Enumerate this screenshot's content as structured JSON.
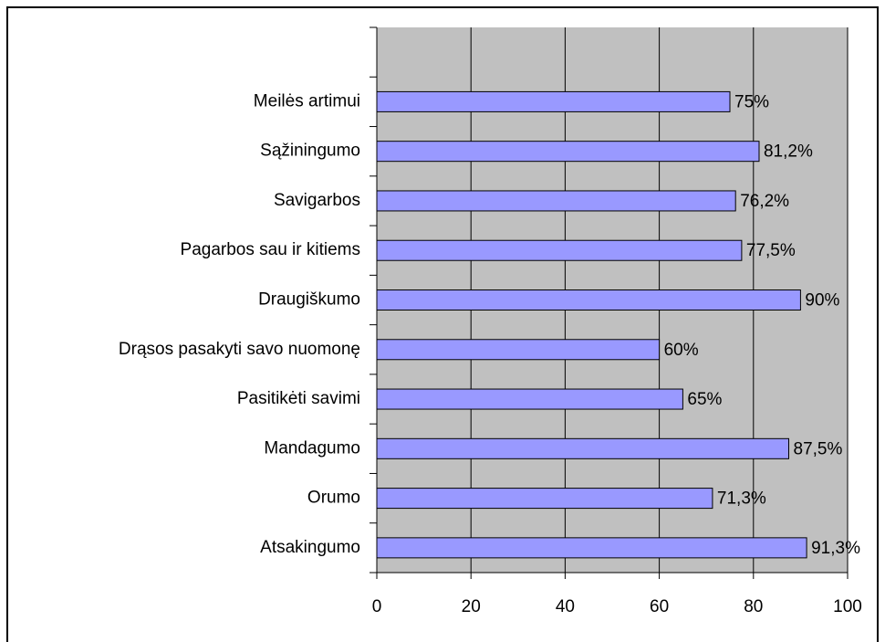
{
  "chart_data": {
    "type": "barh",
    "categories": [
      null,
      "Meilės artimui",
      "Sąžiningumo",
      "Savigarbos",
      "Pagarbos sau ir kitiems",
      "Draugiškumo",
      "Drąsos pasakyti savo nuomonę",
      "Pasitikėti savimi",
      "Mandagumo",
      "Orumo",
      "Atsakingumo"
    ],
    "values": [
      null,
      75,
      81.2,
      76.2,
      77.5,
      90,
      60,
      65,
      87.5,
      71.3,
      91.3
    ],
    "value_labels": [
      null,
      "75%",
      "81,2%",
      "76,2%",
      "77,5%",
      "90%",
      "60%",
      "65%",
      "87,5%",
      "71,3%",
      "91,3%"
    ],
    "color": "#9999ff",
    "background": "#c0c0c0",
    "xlim": [
      0,
      100
    ],
    "xticks": [
      0,
      20,
      40,
      60,
      80,
      100
    ],
    "grid": true
  }
}
